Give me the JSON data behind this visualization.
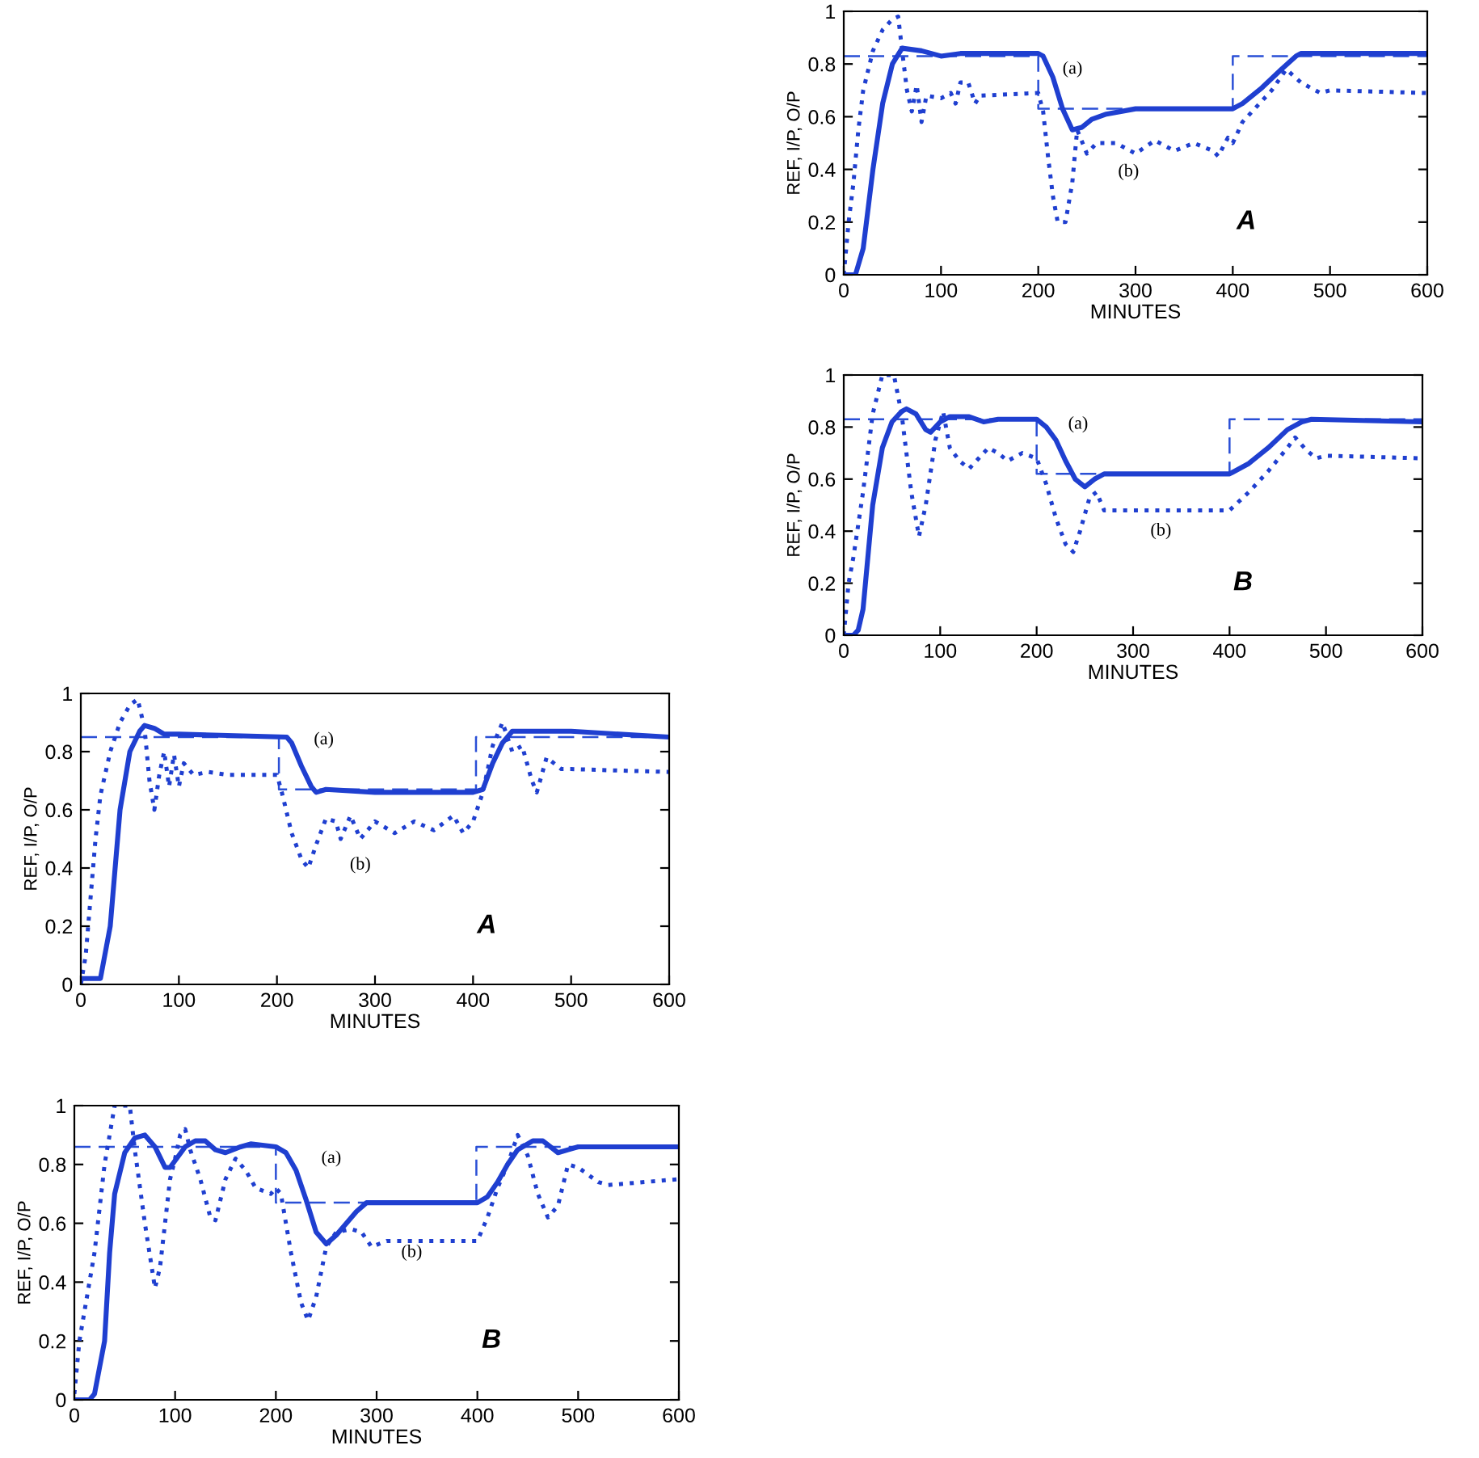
{
  "chart_data": [
    {
      "type": "line",
      "xlabel": "MINUTES",
      "ylabel": "REF, I/P, O/P",
      "xlim": [
        0,
        600
      ],
      "ylim": [
        0,
        1
      ],
      "xticks": [
        0,
        100,
        200,
        300,
        400,
        500,
        600
      ],
      "yticks": [
        0,
        0.2,
        0.4,
        0.6,
        0.8,
        1
      ],
      "grid": false,
      "annotations": [
        "(a)",
        "(b)",
        "A"
      ],
      "series": [
        {
          "type": "step",
          "color": "#2a4fd6",
          "line_style": "dashed",
          "x": [
            0,
            202,
            403,
            600
          ],
          "values": [
            0.85,
            0.67,
            0.85,
            0.85
          ]
        },
        {
          "color": "#1f3fd0",
          "line_style": "solid",
          "x": [
            0,
            20,
            30,
            40,
            50,
            60,
            65,
            75,
            85,
            100,
            210,
            215,
            225,
            235,
            240,
            250,
            300,
            400,
            410,
            420,
            430,
            440,
            450,
            500,
            600
          ],
          "values": [
            0.02,
            0.02,
            0.2,
            0.6,
            0.8,
            0.87,
            0.89,
            0.88,
            0.86,
            0.86,
            0.85,
            0.83,
            0.75,
            0.68,
            0.66,
            0.67,
            0.66,
            0.66,
            0.67,
            0.76,
            0.83,
            0.87,
            0.87,
            0.87,
            0.85
          ]
        },
        {
          "color": "#1f3fd0",
          "line_style": "dotted",
          "x": [
            0,
            5,
            10,
            15,
            20,
            30,
            40,
            50,
            58,
            65,
            70,
            75,
            80,
            85,
            90,
            95,
            100,
            105,
            115,
            130,
            150,
            200,
            205,
            215,
            225,
            232,
            240,
            250,
            260,
            265,
            275,
            285,
            300,
            320,
            340,
            360,
            380,
            390,
            400,
            410,
            420,
            430,
            440,
            450,
            460,
            465,
            475,
            490,
            500,
            600
          ],
          "values": [
            0,
            0.1,
            0.3,
            0.5,
            0.65,
            0.8,
            0.9,
            0.96,
            0.98,
            0.88,
            0.7,
            0.6,
            0.72,
            0.8,
            0.68,
            0.79,
            0.68,
            0.76,
            0.72,
            0.73,
            0.72,
            0.72,
            0.66,
            0.52,
            0.43,
            0.4,
            0.48,
            0.57,
            0.56,
            0.5,
            0.58,
            0.5,
            0.56,
            0.52,
            0.56,
            0.53,
            0.58,
            0.52,
            0.56,
            0.66,
            0.82,
            0.9,
            0.8,
            0.82,
            0.7,
            0.66,
            0.78,
            0.74,
            0.74,
            0.73
          ]
        }
      ]
    },
    {
      "type": "line",
      "xlabel": "MINUTES",
      "ylabel": "REF, I/P, O/P",
      "xlim": [
        0,
        600
      ],
      "ylim": [
        0,
        1
      ],
      "xticks": [
        0,
        100,
        200,
        300,
        400,
        500,
        600
      ],
      "yticks": [
        0,
        0.2,
        0.4,
        0.6,
        0.8,
        1
      ],
      "grid": false,
      "annotations": [
        "(a)",
        "(b)",
        "B"
      ],
      "series": [
        {
          "type": "step",
          "color": "#2a4fd6",
          "line_style": "dashed",
          "x": [
            0,
            200,
            399,
            600
          ],
          "values": [
            0.86,
            0.67,
            0.86,
            0.86
          ]
        },
        {
          "color": "#1f3fd0",
          "line_style": "solid",
          "x": [
            0,
            15,
            20,
            30,
            35,
            40,
            50,
            60,
            70,
            80,
            90,
            95,
            110,
            120,
            130,
            140,
            150,
            165,
            175,
            200,
            210,
            220,
            230,
            240,
            250,
            260,
            280,
            290,
            300,
            400,
            410,
            420,
            430,
            440,
            455,
            465,
            480,
            490,
            500,
            600
          ],
          "values": [
            0,
            0,
            0.02,
            0.2,
            0.5,
            0.7,
            0.84,
            0.89,
            0.9,
            0.86,
            0.79,
            0.79,
            0.86,
            0.88,
            0.88,
            0.85,
            0.84,
            0.86,
            0.87,
            0.86,
            0.84,
            0.78,
            0.68,
            0.57,
            0.53,
            0.56,
            0.64,
            0.67,
            0.67,
            0.67,
            0.69,
            0.74,
            0.8,
            0.85,
            0.88,
            0.88,
            0.84,
            0.85,
            0.86,
            0.86
          ]
        },
        {
          "color": "#1f3fd0",
          "line_style": "dotted",
          "x": [
            0,
            5,
            10,
            20,
            25,
            30,
            40,
            50,
            55,
            60,
            70,
            80,
            85,
            95,
            100,
            105,
            110,
            115,
            125,
            135,
            140,
            150,
            160,
            170,
            180,
            195,
            200,
            205,
            215,
            225,
            232,
            240,
            250,
            260,
            275,
            285,
            295,
            310,
            400,
            410,
            420,
            430,
            440,
            450,
            460,
            470,
            480,
            490,
            500,
            520,
            530,
            600
          ],
          "values": [
            0.02,
            0.2,
            0.3,
            0.5,
            0.65,
            0.8,
            1.0,
            1.0,
            1.0,
            0.85,
            0.6,
            0.38,
            0.45,
            0.75,
            0.82,
            0.9,
            0.92,
            0.85,
            0.75,
            0.62,
            0.61,
            0.75,
            0.82,
            0.78,
            0.72,
            0.7,
            0.72,
            0.7,
            0.5,
            0.33,
            0.27,
            0.35,
            0.52,
            0.57,
            0.58,
            0.57,
            0.52,
            0.54,
            0.54,
            0.62,
            0.72,
            0.8,
            0.9,
            0.83,
            0.7,
            0.62,
            0.66,
            0.8,
            0.79,
            0.74,
            0.73,
            0.75
          ]
        }
      ]
    },
    {
      "type": "line",
      "xlabel": "MINUTES",
      "ylabel": "REF, I/P, O/P",
      "xlim": [
        0,
        600
      ],
      "ylim": [
        0,
        1
      ],
      "xticks": [
        0,
        100,
        200,
        300,
        400,
        500,
        600
      ],
      "yticks": [
        0,
        0.2,
        0.4,
        0.6,
        0.8,
        1
      ],
      "grid": false,
      "annotations": [
        "(a)",
        "(b)",
        "A"
      ],
      "series": [
        {
          "type": "step",
          "color": "#2a4fd6",
          "line_style": "dashed",
          "x": [
            0,
            200,
            400,
            600
          ],
          "values": [
            0.83,
            0.63,
            0.83,
            0.83
          ]
        },
        {
          "color": "#1f3fd0",
          "line_style": "solid",
          "x": [
            0,
            12,
            20,
            30,
            40,
            50,
            60,
            80,
            100,
            120,
            200,
            205,
            215,
            225,
            235,
            245,
            255,
            270,
            300,
            400,
            410,
            430,
            450,
            465,
            470,
            600
          ],
          "values": [
            0,
            0,
            0.1,
            0.4,
            0.65,
            0.8,
            0.86,
            0.85,
            0.83,
            0.84,
            0.84,
            0.83,
            0.75,
            0.63,
            0.55,
            0.56,
            0.59,
            0.61,
            0.63,
            0.63,
            0.65,
            0.71,
            0.78,
            0.83,
            0.84,
            0.84
          ]
        },
        {
          "color": "#1f3fd0",
          "line_style": "dotted",
          "x": [
            0,
            5,
            10,
            15,
            20,
            30,
            40,
            50,
            56,
            60,
            65,
            70,
            75,
            80,
            85,
            100,
            110,
            115,
            120,
            128,
            135,
            140,
            200,
            205,
            210,
            215,
            220,
            228,
            235,
            240,
            250,
            260,
            280,
            300,
            320,
            340,
            360,
            380,
            385,
            395,
            400,
            410,
            420,
            440,
            455,
            470,
            490,
            500,
            600
          ],
          "values": [
            0,
            0.2,
            0.35,
            0.55,
            0.7,
            0.85,
            0.93,
            0.97,
            0.98,
            0.85,
            0.7,
            0.62,
            0.72,
            0.58,
            0.68,
            0.67,
            0.69,
            0.65,
            0.73,
            0.73,
            0.65,
            0.68,
            0.69,
            0.62,
            0.45,
            0.3,
            0.2,
            0.2,
            0.35,
            0.55,
            0.46,
            0.5,
            0.5,
            0.46,
            0.51,
            0.47,
            0.5,
            0.47,
            0.45,
            0.52,
            0.5,
            0.58,
            0.62,
            0.7,
            0.78,
            0.73,
            0.69,
            0.7,
            0.69
          ]
        }
      ]
    },
    {
      "type": "line",
      "xlabel": "MINUTES",
      "ylabel": "REF, I/P, O/P",
      "xlim": [
        0,
        600
      ],
      "ylim": [
        0,
        1
      ],
      "xticks": [
        0,
        100,
        200,
        300,
        400,
        500,
        600
      ],
      "yticks": [
        0,
        0.2,
        0.4,
        0.6,
        0.8,
        1
      ],
      "grid": false,
      "annotations": [
        "(a)",
        "(b)",
        "B"
      ],
      "series": [
        {
          "type": "step",
          "color": "#2a4fd6",
          "line_style": "dashed",
          "x": [
            0,
            200,
            400,
            600
          ],
          "values": [
            0.83,
            0.62,
            0.83,
            0.83
          ]
        },
        {
          "color": "#1f3fd0",
          "line_style": "solid",
          "x": [
            0,
            10,
            15,
            20,
            25,
            30,
            40,
            50,
            60,
            65,
            75,
            85,
            90,
            100,
            110,
            130,
            145,
            160,
            200,
            210,
            220,
            230,
            240,
            250,
            260,
            270,
            400,
            420,
            440,
            460,
            475,
            485,
            600
          ],
          "values": [
            0,
            0,
            0.02,
            0.1,
            0.3,
            0.5,
            0.72,
            0.82,
            0.86,
            0.87,
            0.85,
            0.79,
            0.78,
            0.82,
            0.84,
            0.84,
            0.82,
            0.83,
            0.83,
            0.8,
            0.75,
            0.67,
            0.6,
            0.57,
            0.6,
            0.62,
            0.62,
            0.66,
            0.72,
            0.79,
            0.82,
            0.83,
            0.82
          ]
        },
        {
          "color": "#1f3fd0",
          "line_style": "dotted",
          "x": [
            0,
            5,
            10,
            20,
            30,
            40,
            52,
            60,
            70,
            78,
            85,
            95,
            103,
            110,
            120,
            130,
            140,
            150,
            160,
            170,
            185,
            200,
            210,
            220,
            230,
            238,
            245,
            255,
            262,
            270,
            290,
            400,
            420,
            440,
            460,
            468,
            480,
            490,
            500,
            600
          ],
          "values": [
            0,
            0.2,
            0.3,
            0.55,
            0.85,
            1.0,
            1.0,
            0.85,
            0.55,
            0.38,
            0.5,
            0.75,
            0.86,
            0.72,
            0.67,
            0.64,
            0.68,
            0.72,
            0.7,
            0.67,
            0.7,
            0.68,
            0.58,
            0.45,
            0.35,
            0.32,
            0.4,
            0.53,
            0.55,
            0.48,
            0.48,
            0.48,
            0.55,
            0.63,
            0.72,
            0.76,
            0.71,
            0.68,
            0.69,
            0.68
          ]
        }
      ]
    }
  ]
}
